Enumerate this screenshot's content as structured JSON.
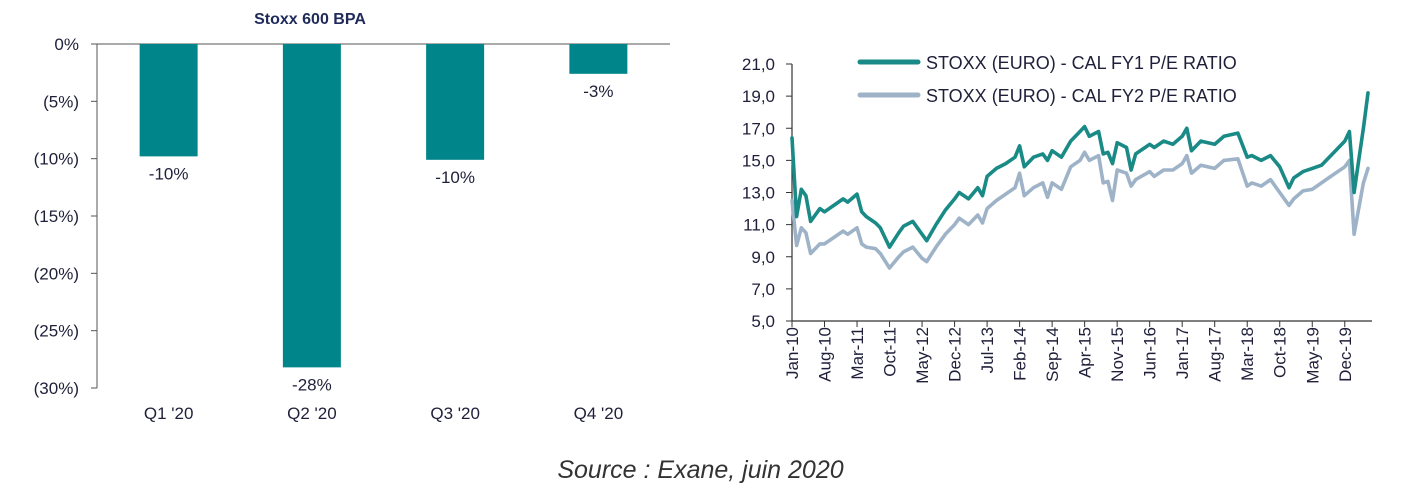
{
  "chart_data": [
    {
      "type": "bar",
      "title": "Stoxx 600  BPA",
      "categories": [
        "Q1 '20",
        "Q2 '20",
        "Q3 '20",
        "Q4 '20"
      ],
      "values": [
        -9.8,
        -28.2,
        -10.1,
        -2.6
      ],
      "data_labels": [
        "-10%",
        "-28%",
        "-10%",
        "-3%"
      ],
      "ylim": [
        -30,
        0
      ],
      "yticks": [
        0,
        -5,
        -10,
        -15,
        -20,
        -25,
        -30
      ],
      "ytick_labels": [
        "0%",
        "(5%)",
        "(10%)",
        "(15%)",
        "(20%)",
        "(25%)",
        "(30%)"
      ],
      "color": "#00868a",
      "grid": false
    },
    {
      "type": "line",
      "ylim": [
        5,
        21
      ],
      "yticks": [
        5,
        7,
        9,
        11,
        13,
        15,
        17,
        19,
        21
      ],
      "ytick_labels": [
        "5,0",
        "7,0",
        "9,0",
        "11,0",
        "13,0",
        "15,0",
        "17,0",
        "19,0",
        "21,0"
      ],
      "x_ticks": [
        "Jan-10",
        "Aug-10",
        "Mar-11",
        "Oct-11",
        "May-12",
        "Dec-12",
        "Jul-13",
        "Feb-14",
        "Sep-14",
        "Apr-15",
        "Nov-15",
        "Jun-16",
        "Jan-17",
        "Aug-17",
        "Mar-18",
        "Oct-18",
        "May-19",
        "Dec-19"
      ],
      "legend_position": "top",
      "grid": false,
      "series": [
        {
          "name": "STOXX (EURO) - CAL FY1 P/E RATIO",
          "color": "#1a8a86",
          "x": [
            "Jan-10",
            "Feb-10",
            "Mar-10",
            "Apr-10",
            "May-10",
            "Jul-10",
            "Aug-10",
            "Oct-10",
            "Dec-10",
            "Jan-11",
            "Mar-11",
            "Apr-11",
            "May-11",
            "Jul-11",
            "Aug-11",
            "Oct-11",
            "Dec-11",
            "Jan-12",
            "Mar-12",
            "May-12",
            "Jun-12",
            "Aug-12",
            "Oct-12",
            "Dec-12",
            "Jan-13",
            "Mar-13",
            "May-13",
            "Jun-13",
            "Jul-13",
            "Sep-13",
            "Nov-13",
            "Jan-14",
            "Feb-14",
            "Mar-14",
            "May-14",
            "Jul-14",
            "Aug-14",
            "Sep-14",
            "Nov-14",
            "Jan-15",
            "Mar-15",
            "Apr-15",
            "May-15",
            "Jul-15",
            "Aug-15",
            "Sep-15",
            "Oct-15",
            "Nov-15",
            "Jan-16",
            "Feb-16",
            "Mar-16",
            "Jun-16",
            "Jul-16",
            "Sep-16",
            "Nov-16",
            "Jan-17",
            "Feb-17",
            "Mar-17",
            "May-17",
            "Aug-17",
            "Oct-17",
            "Jan-18",
            "Mar-18",
            "Apr-18",
            "Jun-18",
            "Aug-18",
            "Oct-18",
            "Dec-18",
            "Jan-19",
            "Mar-19",
            "May-19",
            "Jul-19",
            "Sep-19",
            "Dec-19",
            "Jan-20",
            "Feb-20",
            "Mar-20",
            "Apr-20",
            "May-20"
          ],
          "values": [
            16.4,
            11.5,
            13.2,
            12.8,
            11.2,
            12.0,
            11.8,
            12.2,
            12.6,
            12.4,
            12.9,
            11.8,
            11.5,
            11.1,
            10.8,
            9.6,
            10.5,
            10.9,
            11.2,
            10.4,
            10.0,
            11.0,
            11.9,
            12.6,
            13.0,
            12.6,
            13.3,
            12.8,
            14.0,
            14.5,
            14.8,
            15.2,
            15.9,
            14.6,
            15.2,
            15.4,
            15.0,
            15.6,
            15.2,
            16.2,
            16.8,
            17.1,
            16.5,
            16.8,
            15.4,
            15.5,
            14.8,
            16.1,
            15.8,
            14.4,
            15.4,
            16.0,
            15.8,
            16.2,
            16.0,
            16.5,
            17.0,
            15.6,
            16.2,
            16.0,
            16.5,
            16.7,
            15.2,
            15.3,
            15.0,
            15.3,
            14.6,
            13.3,
            13.9,
            14.3,
            14.5,
            14.7,
            15.3,
            16.2,
            16.8,
            13.0,
            15.0,
            17.0,
            19.2
          ]
        },
        {
          "name": "STOXX (EURO) - CAL FY2 P/E RATIO",
          "color": "#9fb3c8",
          "x": [
            "Jan-10",
            "Feb-10",
            "Mar-10",
            "Apr-10",
            "May-10",
            "Jul-10",
            "Aug-10",
            "Oct-10",
            "Dec-10",
            "Jan-11",
            "Mar-11",
            "Apr-11",
            "May-11",
            "Jul-11",
            "Aug-11",
            "Oct-11",
            "Dec-11",
            "Jan-12",
            "Mar-12",
            "May-12",
            "Jun-12",
            "Aug-12",
            "Oct-12",
            "Dec-12",
            "Jan-13",
            "Mar-13",
            "May-13",
            "Jun-13",
            "Jul-13",
            "Sep-13",
            "Nov-13",
            "Jan-14",
            "Feb-14",
            "Mar-14",
            "May-14",
            "Jul-14",
            "Aug-14",
            "Sep-14",
            "Nov-14",
            "Jan-15",
            "Mar-15",
            "Apr-15",
            "May-15",
            "Jul-15",
            "Aug-15",
            "Sep-15",
            "Oct-15",
            "Nov-15",
            "Jan-16",
            "Feb-16",
            "Mar-16",
            "Jun-16",
            "Jul-16",
            "Sep-16",
            "Nov-16",
            "Jan-17",
            "Feb-17",
            "Mar-17",
            "May-17",
            "Aug-17",
            "Oct-17",
            "Jan-18",
            "Mar-18",
            "Apr-18",
            "Jun-18",
            "Aug-18",
            "Oct-18",
            "Dec-18",
            "Jan-19",
            "Mar-19",
            "May-19",
            "Jul-19",
            "Sep-19",
            "Dec-19",
            "Jan-20",
            "Feb-20",
            "Mar-20",
            "Apr-20",
            "May-20"
          ],
          "values": [
            12.5,
            9.7,
            10.8,
            10.5,
            9.2,
            9.8,
            9.8,
            10.2,
            10.6,
            10.4,
            10.8,
            9.8,
            9.6,
            9.5,
            9.2,
            8.3,
            9.0,
            9.3,
            9.6,
            8.9,
            8.7,
            9.6,
            10.4,
            11.0,
            11.4,
            11.0,
            11.6,
            11.1,
            12.0,
            12.5,
            12.9,
            13.3,
            14.2,
            12.8,
            13.3,
            13.6,
            12.7,
            13.6,
            13.2,
            14.6,
            15.0,
            15.5,
            15.0,
            15.3,
            13.6,
            13.7,
            12.5,
            14.4,
            14.2,
            13.4,
            13.8,
            14.3,
            14.0,
            14.4,
            14.4,
            14.8,
            15.3,
            14.2,
            14.7,
            14.5,
            15.0,
            15.1,
            13.4,
            13.6,
            13.4,
            13.8,
            13.0,
            12.2,
            12.6,
            13.1,
            13.2,
            13.6,
            14.0,
            14.6,
            15.0,
            10.4,
            12.0,
            13.6,
            14.5
          ]
        }
      ]
    }
  ],
  "source": "Source : Exane, juin 2020"
}
